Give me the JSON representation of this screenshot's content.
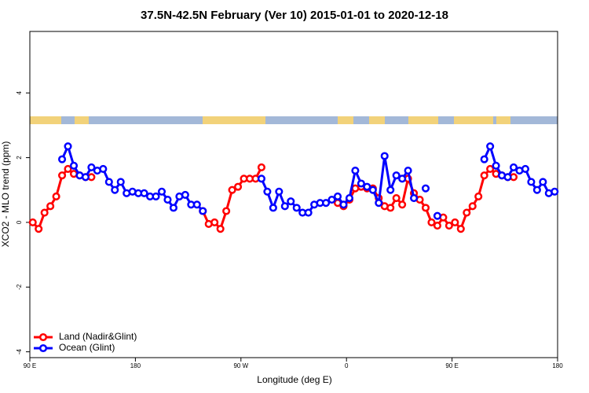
{
  "chart_data": {
    "type": "line",
    "title": "37.5N-42.5N February (Ver 10)   2015-01-01 to 2020-12-18",
    "xlabel": "Longitude (deg E)",
    "ylabel": "XCO2 - MLO trend (ppm)",
    "x": [
      92.5,
      97.5,
      102.5,
      107.5,
      112.5,
      117.5,
      122.5,
      127.5,
      132.5,
      137.5,
      142.5,
      147.5,
      152.5,
      157.5,
      162.5,
      167.5,
      172.5,
      177.5,
      182.5,
      187.5,
      192.5,
      197.5,
      202.5,
      207.5,
      212.5,
      217.5,
      222.5,
      227.5,
      232.5,
      237.5,
      242.5,
      247.5,
      252.5,
      257.5,
      262.5,
      267.5,
      272.5,
      277.5,
      282.5,
      287.5,
      292.5,
      297.5,
      302.5,
      307.5,
      312.5,
      317.5,
      322.5,
      327.5,
      332.5,
      337.5,
      342.5,
      347.5,
      352.5,
      357.5,
      362.5,
      367.5,
      372.5,
      377.5,
      382.5,
      387.5,
      392.5,
      397.5,
      402.5,
      407.5,
      412.5,
      417.5,
      422.5,
      427.5,
      432.5,
      437.5,
      442.5,
      447.5,
      452.5,
      457.5,
      462.5,
      467.5,
      472.5,
      477.5,
      482.5,
      487.5,
      492.5,
      497.5,
      502.5,
      507.5,
      512.5,
      517.5,
      522.5,
      527.5,
      532.5,
      537.5
    ],
    "series": [
      {
        "name": "Land (Nadir&Glint)",
        "color": "#ff0000",
        "values": [
          0.0,
          -0.2,
          0.3,
          0.5,
          0.8,
          1.45,
          1.65,
          1.5,
          1.45,
          1.4,
          1.4,
          null,
          null,
          null,
          null,
          null,
          null,
          null,
          null,
          null,
          null,
          null,
          null,
          null,
          null,
          null,
          null,
          null,
          null,
          0.35,
          -0.05,
          0.0,
          -0.2,
          0.35,
          1.0,
          1.1,
          1.35,
          1.35,
          1.35,
          1.7,
          null,
          null,
          null,
          null,
          null,
          null,
          null,
          null,
          null,
          null,
          null,
          null,
          0.6,
          0.5,
          0.7,
          1.05,
          1.1,
          1.05,
          1.05,
          0.75,
          0.5,
          0.45,
          0.75,
          0.55,
          1.35,
          0.9,
          0.7,
          0.45,
          0.0,
          -0.1,
          0.15,
          -0.1,
          0.0,
          -0.2,
          0.3,
          0.5,
          0.8,
          1.45,
          1.65,
          1.5,
          1.45,
          1.4,
          1.4,
          null,
          null,
          null,
          null,
          null,
          null,
          null
        ]
      },
      {
        "name": "Ocean (Glint)",
        "color": "#0000ff",
        "values": [
          null,
          null,
          null,
          null,
          null,
          1.95,
          2.35,
          1.75,
          1.45,
          1.4,
          1.7,
          1.6,
          1.65,
          1.25,
          1.0,
          1.25,
          0.9,
          0.95,
          0.9,
          0.9,
          0.8,
          0.8,
          0.95,
          0.7,
          0.45,
          0.8,
          0.85,
          0.55,
          0.55,
          0.35,
          null,
          null,
          null,
          null,
          null,
          null,
          null,
          null,
          null,
          1.35,
          0.95,
          0.45,
          0.95,
          0.5,
          0.65,
          0.45,
          0.3,
          0.3,
          0.55,
          0.6,
          0.6,
          0.7,
          0.8,
          0.55,
          0.75,
          1.6,
          1.2,
          1.1,
          1.0,
          0.6,
          2.05,
          1.0,
          1.45,
          1.35,
          1.6,
          0.75,
          null,
          1.05,
          null,
          0.2,
          null,
          null,
          null,
          null,
          null,
          null,
          null,
          1.95,
          2.35,
          1.75,
          1.45,
          1.4,
          1.7,
          1.6,
          1.65,
          1.25,
          1.0,
          1.25,
          0.9,
          0.95
        ]
      }
    ],
    "xlim": [
      90,
      540
    ],
    "xticks": [
      {
        "value": 90,
        "label": "90 E"
      },
      180,
      {
        "value": 270,
        "label": "90 W"
      },
      {
        "value": 360,
        "label": "0"
      },
      {
        "value": 450,
        "label": "90 E"
      },
      {
        "value": 540,
        "label": "180"
      }
    ],
    "ylim": [
      -4.18,
      5.9
    ],
    "yticks": [
      -4,
      -2,
      0,
      2,
      4
    ],
    "grid": false,
    "legend": "bottom-left"
  }
}
